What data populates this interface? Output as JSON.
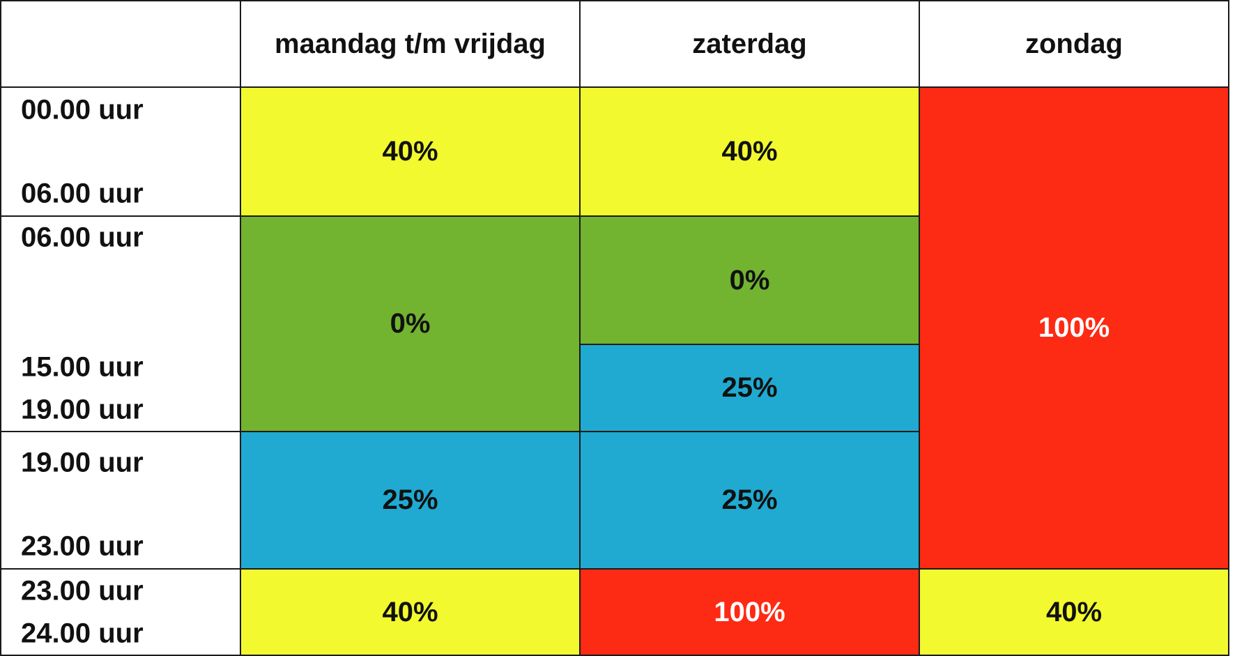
{
  "table": {
    "header": [
      "maandag t/m vrijdag",
      "zaterdag",
      "zondag"
    ],
    "times": [
      "00.00 uur",
      "06.00 uur",
      "06.00 uur",
      "15.00 uur",
      "19.00 uur",
      "19.00 uur",
      "23.00 uur",
      "23.00 uur",
      "24.00 uur"
    ],
    "cells": {
      "weekday_night": "40%",
      "saturday_night": "40%",
      "sunday_day": "100%",
      "weekday_day": "0%",
      "saturday_morning": "0%",
      "saturday_afternoon": "25%",
      "weekday_evening": "25%",
      "saturday_evening": "25%",
      "weekday_late": "40%",
      "saturday_late": "100%",
      "sunday_late": "40%"
    }
  }
}
